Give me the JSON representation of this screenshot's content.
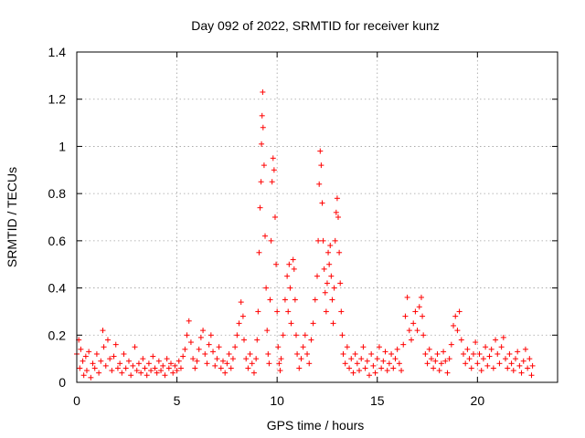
{
  "chart_data": {
    "type": "scatter",
    "title": "Day 092 of 2022, SRMTID for receiver kunz",
    "xlabel": "GPS time / hours",
    "ylabel": "SRMTID / TECUs",
    "xlim": [
      0,
      24
    ],
    "ylim": [
      0,
      1.4
    ],
    "xticks": [
      0,
      5,
      10,
      15,
      20
    ],
    "xtick_labels": [
      "0",
      "5",
      "10",
      "15",
      "20"
    ],
    "yticks": [
      0,
      0.2,
      0.4,
      0.6,
      0.8,
      1.0,
      1.2,
      1.4
    ],
    "ytick_labels": [
      "0",
      "0.2",
      "0.4",
      "0.6",
      "0.8",
      "1",
      "1.2",
      "1.4"
    ],
    "grid": true,
    "marker": "+",
    "color": "#ff0000",
    "series": [
      {
        "name": "SRMTID",
        "points": [
          [
            0.0,
            0.12
          ],
          [
            0.1,
            0.18
          ],
          [
            0.15,
            0.06
          ],
          [
            0.2,
            0.14
          ],
          [
            0.3,
            0.09
          ],
          [
            0.35,
            0.03
          ],
          [
            0.45,
            0.11
          ],
          [
            0.5,
            0.05
          ],
          [
            0.6,
            0.13
          ],
          [
            0.7,
            0.02
          ],
          [
            0.8,
            0.08
          ],
          [
            0.9,
            0.06
          ],
          [
            1.0,
            0.12
          ],
          [
            1.1,
            0.04
          ],
          [
            1.2,
            0.09
          ],
          [
            1.3,
            0.22
          ],
          [
            1.35,
            0.15
          ],
          [
            1.45,
            0.07
          ],
          [
            1.55,
            0.18
          ],
          [
            1.65,
            0.1
          ],
          [
            1.75,
            0.05
          ],
          [
            1.85,
            0.11
          ],
          [
            1.95,
            0.16
          ],
          [
            2.05,
            0.06
          ],
          [
            2.15,
            0.08
          ],
          [
            2.25,
            0.04
          ],
          [
            2.35,
            0.12
          ],
          [
            2.45,
            0.06
          ],
          [
            2.6,
            0.09
          ],
          [
            2.7,
            0.03
          ],
          [
            2.8,
            0.07
          ],
          [
            2.9,
            0.15
          ],
          [
            3.0,
            0.05
          ],
          [
            3.1,
            0.08
          ],
          [
            3.2,
            0.04
          ],
          [
            3.3,
            0.1
          ],
          [
            3.4,
            0.06
          ],
          [
            3.5,
            0.03
          ],
          [
            3.6,
            0.08
          ],
          [
            3.7,
            0.05
          ],
          [
            3.8,
            0.11
          ],
          [
            3.9,
            0.06
          ],
          [
            4.0,
            0.04
          ],
          [
            4.1,
            0.09
          ],
          [
            4.2,
            0.05
          ],
          [
            4.3,
            0.07
          ],
          [
            4.4,
            0.03
          ],
          [
            4.5,
            0.1
          ],
          [
            4.6,
            0.06
          ],
          [
            4.7,
            0.08
          ],
          [
            4.8,
            0.04
          ],
          [
            4.9,
            0.07
          ],
          [
            5.0,
            0.05
          ],
          [
            5.1,
            0.09
          ],
          [
            5.2,
            0.06
          ],
          [
            5.3,
            0.11
          ],
          [
            5.4,
            0.14
          ],
          [
            5.5,
            0.2
          ],
          [
            5.6,
            0.26
          ],
          [
            5.7,
            0.17
          ],
          [
            5.8,
            0.1
          ],
          [
            5.9,
            0.06
          ],
          [
            6.0,
            0.09
          ],
          [
            6.1,
            0.14
          ],
          [
            6.2,
            0.19
          ],
          [
            6.3,
            0.22
          ],
          [
            6.4,
            0.12
          ],
          [
            6.5,
            0.08
          ],
          [
            6.6,
            0.16
          ],
          [
            6.7,
            0.2
          ],
          [
            6.8,
            0.13
          ],
          [
            6.9,
            0.07
          ],
          [
            7.0,
            0.1
          ],
          [
            7.1,
            0.15
          ],
          [
            7.2,
            0.06
          ],
          [
            7.3,
            0.09
          ],
          [
            7.4,
            0.04
          ],
          [
            7.5,
            0.08
          ],
          [
            7.6,
            0.12
          ],
          [
            7.7,
            0.06
          ],
          [
            7.8,
            0.1
          ],
          [
            7.9,
            0.15
          ],
          [
            8.0,
            0.2
          ],
          [
            8.1,
            0.25
          ],
          [
            8.2,
            0.34
          ],
          [
            8.3,
            0.28
          ],
          [
            8.35,
            0.18
          ],
          [
            8.45,
            0.1
          ],
          [
            8.55,
            0.06
          ],
          [
            8.65,
            0.12
          ],
          [
            8.75,
            0.08
          ],
          [
            8.85,
            0.04
          ],
          [
            8.95,
            0.1
          ],
          [
            9.0,
            0.18
          ],
          [
            9.05,
            0.3
          ],
          [
            9.1,
            0.55
          ],
          [
            9.15,
            0.74
          ],
          [
            9.2,
            0.85
          ],
          [
            9.22,
            1.01
          ],
          [
            9.25,
            1.13
          ],
          [
            9.28,
            1.23
          ],
          [
            9.3,
            1.08
          ],
          [
            9.35,
            0.92
          ],
          [
            9.4,
            0.62
          ],
          [
            9.45,
            0.4
          ],
          [
            9.5,
            0.22
          ],
          [
            9.55,
            0.12
          ],
          [
            9.6,
            0.08
          ],
          [
            9.65,
            0.35
          ],
          [
            9.7,
            0.6
          ],
          [
            9.75,
            0.85
          ],
          [
            9.8,
            0.95
          ],
          [
            9.85,
            0.9
          ],
          [
            9.9,
            0.7
          ],
          [
            9.95,
            0.5
          ],
          [
            10.0,
            0.3
          ],
          [
            10.05,
            0.15
          ],
          [
            10.1,
            0.08
          ],
          [
            10.15,
            0.05
          ],
          [
            10.2,
            0.1
          ],
          [
            10.3,
            0.2
          ],
          [
            10.4,
            0.35
          ],
          [
            10.5,
            0.45
          ],
          [
            10.55,
            0.3
          ],
          [
            10.6,
            0.5
          ],
          [
            10.65,
            0.4
          ],
          [
            10.7,
            0.25
          ],
          [
            10.8,
            0.52
          ],
          [
            10.85,
            0.48
          ],
          [
            10.9,
            0.35
          ],
          [
            10.95,
            0.2
          ],
          [
            11.0,
            0.12
          ],
          [
            11.1,
            0.06
          ],
          [
            11.2,
            0.1
          ],
          [
            11.3,
            0.15
          ],
          [
            11.4,
            0.2
          ],
          [
            11.5,
            0.12
          ],
          [
            11.6,
            0.08
          ],
          [
            11.7,
            0.18
          ],
          [
            11.8,
            0.25
          ],
          [
            11.9,
            0.35
          ],
          [
            12.0,
            0.45
          ],
          [
            12.05,
            0.6
          ],
          [
            12.1,
            0.84
          ],
          [
            12.15,
            0.98
          ],
          [
            12.2,
            0.92
          ],
          [
            12.25,
            0.76
          ],
          [
            12.3,
            0.6
          ],
          [
            12.35,
            0.48
          ],
          [
            12.4,
            0.38
          ],
          [
            12.45,
            0.3
          ],
          [
            12.5,
            0.42
          ],
          [
            12.55,
            0.55
          ],
          [
            12.6,
            0.5
          ],
          [
            12.65,
            0.58
          ],
          [
            12.7,
            0.45
          ],
          [
            12.75,
            0.35
          ],
          [
            12.8,
            0.25
          ],
          [
            12.85,
            0.4
          ],
          [
            12.9,
            0.6
          ],
          [
            12.95,
            0.72
          ],
          [
            13.0,
            0.78
          ],
          [
            13.05,
            0.7
          ],
          [
            13.1,
            0.55
          ],
          [
            13.15,
            0.42
          ],
          [
            13.2,
            0.3
          ],
          [
            13.25,
            0.2
          ],
          [
            13.3,
            0.12
          ],
          [
            13.4,
            0.08
          ],
          [
            13.5,
            0.15
          ],
          [
            13.6,
            0.06
          ],
          [
            13.7,
            0.1
          ],
          [
            13.8,
            0.04
          ],
          [
            13.9,
            0.12
          ],
          [
            14.0,
            0.08
          ],
          [
            14.1,
            0.05
          ],
          [
            14.2,
            0.1
          ],
          [
            14.3,
            0.15
          ],
          [
            14.4,
            0.06
          ],
          [
            14.5,
            0.09
          ],
          [
            14.6,
            0.03
          ],
          [
            14.7,
            0.12
          ],
          [
            14.8,
            0.07
          ],
          [
            14.9,
            0.04
          ],
          [
            15.0,
            0.1
          ],
          [
            15.1,
            0.15
          ],
          [
            15.2,
            0.06
          ],
          [
            15.3,
            0.09
          ],
          [
            15.4,
            0.13
          ],
          [
            15.5,
            0.05
          ],
          [
            15.6,
            0.08
          ],
          [
            15.7,
            0.12
          ],
          [
            15.8,
            0.06
          ],
          [
            15.9,
            0.1
          ],
          [
            16.0,
            0.14
          ],
          [
            16.1,
            0.08
          ],
          [
            16.2,
            0.05
          ],
          [
            16.3,
            0.16
          ],
          [
            16.4,
            0.28
          ],
          [
            16.5,
            0.36
          ],
          [
            16.6,
            0.22
          ],
          [
            16.7,
            0.18
          ],
          [
            16.8,
            0.25
          ],
          [
            16.9,
            0.3
          ],
          [
            17.0,
            0.22
          ],
          [
            17.1,
            0.32
          ],
          [
            17.2,
            0.36
          ],
          [
            17.25,
            0.28
          ],
          [
            17.3,
            0.2
          ],
          [
            17.4,
            0.12
          ],
          [
            17.5,
            0.08
          ],
          [
            17.6,
            0.14
          ],
          [
            17.7,
            0.1
          ],
          [
            17.8,
            0.06
          ],
          [
            17.9,
            0.09
          ],
          [
            18.0,
            0.12
          ],
          [
            18.1,
            0.05
          ],
          [
            18.2,
            0.08
          ],
          [
            18.3,
            0.13
          ],
          [
            18.4,
            0.09
          ],
          [
            18.5,
            0.04
          ],
          [
            18.6,
            0.1
          ],
          [
            18.7,
            0.16
          ],
          [
            18.8,
            0.24
          ],
          [
            18.9,
            0.28
          ],
          [
            19.0,
            0.22
          ],
          [
            19.1,
            0.3
          ],
          [
            19.2,
            0.18
          ],
          [
            19.3,
            0.12
          ],
          [
            19.4,
            0.08
          ],
          [
            19.5,
            0.14
          ],
          [
            19.6,
            0.1
          ],
          [
            19.7,
            0.06
          ],
          [
            19.8,
            0.12
          ],
          [
            19.9,
            0.17
          ],
          [
            20.0,
            0.08
          ],
          [
            20.1,
            0.12
          ],
          [
            20.2,
            0.05
          ],
          [
            20.3,
            0.1
          ],
          [
            20.4,
            0.15
          ],
          [
            20.5,
            0.07
          ],
          [
            20.6,
            0.11
          ],
          [
            20.7,
            0.14
          ],
          [
            20.8,
            0.06
          ],
          [
            20.9,
            0.18
          ],
          [
            21.0,
            0.12
          ],
          [
            21.1,
            0.08
          ],
          [
            21.2,
            0.15
          ],
          [
            21.3,
            0.19
          ],
          [
            21.4,
            0.1
          ],
          [
            21.5,
            0.06
          ],
          [
            21.6,
            0.12
          ],
          [
            21.7,
            0.08
          ],
          [
            21.8,
            0.05
          ],
          [
            21.9,
            0.1
          ],
          [
            22.0,
            0.13
          ],
          [
            22.1,
            0.07
          ],
          [
            22.2,
            0.04
          ],
          [
            22.3,
            0.09
          ],
          [
            22.4,
            0.14
          ],
          [
            22.5,
            0.06
          ],
          [
            22.6,
            0.1
          ],
          [
            22.7,
            0.03
          ],
          [
            22.75,
            0.07
          ]
        ]
      }
    ]
  }
}
